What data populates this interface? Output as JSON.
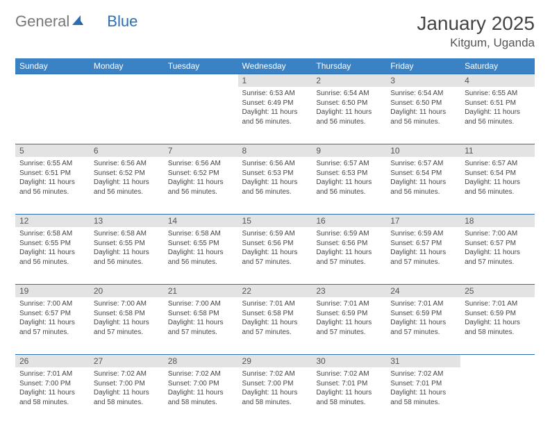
{
  "logo": {
    "general": "General",
    "blue": "Blue"
  },
  "title": "January 2025",
  "location": "Kitgum, Uganda",
  "colors": {
    "header_bg": "#3b82c4",
    "header_text": "#ffffff",
    "daynum_bg": "#e3e3e3",
    "divider": "#2a6fb5",
    "body_text": "#444444"
  },
  "typography": {
    "title_fontsize": 28,
    "location_fontsize": 17,
    "weekday_fontsize": 12,
    "daynum_fontsize": 12,
    "cell_fontsize": 10
  },
  "weekdays": [
    "Sunday",
    "Monday",
    "Tuesday",
    "Wednesday",
    "Thursday",
    "Friday",
    "Saturday"
  ],
  "weeks": [
    [
      null,
      null,
      null,
      {
        "n": "1",
        "sr": "6:53 AM",
        "ss": "6:49 PM",
        "dl": "11 hours and 56 minutes."
      },
      {
        "n": "2",
        "sr": "6:54 AM",
        "ss": "6:50 PM",
        "dl": "11 hours and 56 minutes."
      },
      {
        "n": "3",
        "sr": "6:54 AM",
        "ss": "6:50 PM",
        "dl": "11 hours and 56 minutes."
      },
      {
        "n": "4",
        "sr": "6:55 AM",
        "ss": "6:51 PM",
        "dl": "11 hours and 56 minutes."
      }
    ],
    [
      {
        "n": "5",
        "sr": "6:55 AM",
        "ss": "6:51 PM",
        "dl": "11 hours and 56 minutes."
      },
      {
        "n": "6",
        "sr": "6:56 AM",
        "ss": "6:52 PM",
        "dl": "11 hours and 56 minutes."
      },
      {
        "n": "7",
        "sr": "6:56 AM",
        "ss": "6:52 PM",
        "dl": "11 hours and 56 minutes."
      },
      {
        "n": "8",
        "sr": "6:56 AM",
        "ss": "6:53 PM",
        "dl": "11 hours and 56 minutes."
      },
      {
        "n": "9",
        "sr": "6:57 AM",
        "ss": "6:53 PM",
        "dl": "11 hours and 56 minutes."
      },
      {
        "n": "10",
        "sr": "6:57 AM",
        "ss": "6:54 PM",
        "dl": "11 hours and 56 minutes."
      },
      {
        "n": "11",
        "sr": "6:57 AM",
        "ss": "6:54 PM",
        "dl": "11 hours and 56 minutes."
      }
    ],
    [
      {
        "n": "12",
        "sr": "6:58 AM",
        "ss": "6:55 PM",
        "dl": "11 hours and 56 minutes."
      },
      {
        "n": "13",
        "sr": "6:58 AM",
        "ss": "6:55 PM",
        "dl": "11 hours and 56 minutes."
      },
      {
        "n": "14",
        "sr": "6:58 AM",
        "ss": "6:55 PM",
        "dl": "11 hours and 56 minutes."
      },
      {
        "n": "15",
        "sr": "6:59 AM",
        "ss": "6:56 PM",
        "dl": "11 hours and 57 minutes."
      },
      {
        "n": "16",
        "sr": "6:59 AM",
        "ss": "6:56 PM",
        "dl": "11 hours and 57 minutes."
      },
      {
        "n": "17",
        "sr": "6:59 AM",
        "ss": "6:57 PM",
        "dl": "11 hours and 57 minutes."
      },
      {
        "n": "18",
        "sr": "7:00 AM",
        "ss": "6:57 PM",
        "dl": "11 hours and 57 minutes."
      }
    ],
    [
      {
        "n": "19",
        "sr": "7:00 AM",
        "ss": "6:57 PM",
        "dl": "11 hours and 57 minutes."
      },
      {
        "n": "20",
        "sr": "7:00 AM",
        "ss": "6:58 PM",
        "dl": "11 hours and 57 minutes."
      },
      {
        "n": "21",
        "sr": "7:00 AM",
        "ss": "6:58 PM",
        "dl": "11 hours and 57 minutes."
      },
      {
        "n": "22",
        "sr": "7:01 AM",
        "ss": "6:58 PM",
        "dl": "11 hours and 57 minutes."
      },
      {
        "n": "23",
        "sr": "7:01 AM",
        "ss": "6:59 PM",
        "dl": "11 hours and 57 minutes."
      },
      {
        "n": "24",
        "sr": "7:01 AM",
        "ss": "6:59 PM",
        "dl": "11 hours and 57 minutes."
      },
      {
        "n": "25",
        "sr": "7:01 AM",
        "ss": "6:59 PM",
        "dl": "11 hours and 58 minutes."
      }
    ],
    [
      {
        "n": "26",
        "sr": "7:01 AM",
        "ss": "7:00 PM",
        "dl": "11 hours and 58 minutes."
      },
      {
        "n": "27",
        "sr": "7:02 AM",
        "ss": "7:00 PM",
        "dl": "11 hours and 58 minutes."
      },
      {
        "n": "28",
        "sr": "7:02 AM",
        "ss": "7:00 PM",
        "dl": "11 hours and 58 minutes."
      },
      {
        "n": "29",
        "sr": "7:02 AM",
        "ss": "7:00 PM",
        "dl": "11 hours and 58 minutes."
      },
      {
        "n": "30",
        "sr": "7:02 AM",
        "ss": "7:01 PM",
        "dl": "11 hours and 58 minutes."
      },
      {
        "n": "31",
        "sr": "7:02 AM",
        "ss": "7:01 PM",
        "dl": "11 hours and 58 minutes."
      },
      null
    ]
  ],
  "labels": {
    "sunrise": "Sunrise:",
    "sunset": "Sunset:",
    "daylight": "Daylight:"
  }
}
